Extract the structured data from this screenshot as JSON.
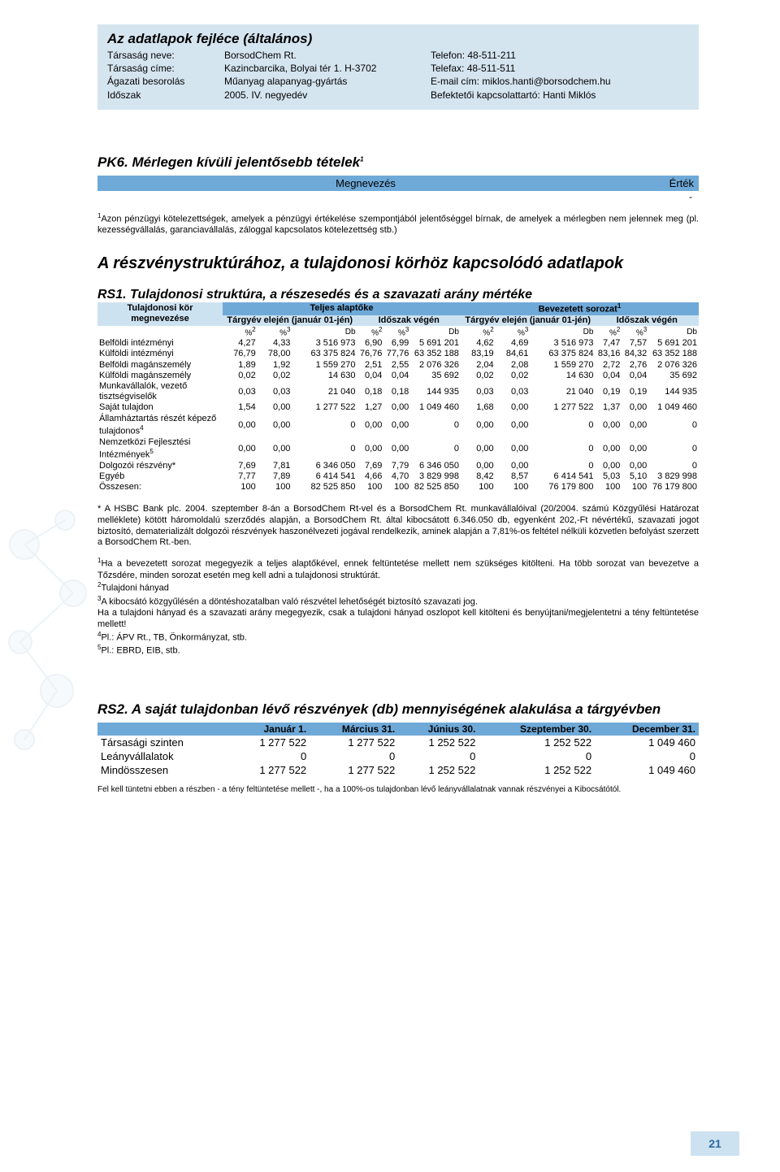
{
  "header": {
    "title": "Az adatlapok fejléce (általános)",
    "rows": [
      {
        "l": "Társaság neve:",
        "m": "BorsodChem Rt.",
        "r": "Telefon: 48-511-211"
      },
      {
        "l": "Társaság címe:",
        "m": "Kazincbarcika, Bolyai tér 1. H-3702",
        "r": "Telefax: 48-511-511"
      },
      {
        "l": "Ágazati besorolás",
        "m": "Műanyag alapanyag-gyártás",
        "r": "E-mail cím: miklos.hanti@borsodchem.hu"
      },
      {
        "l": "Időszak",
        "m": "2005. IV. negyedév",
        "r": "Befektetői kapcsolattartó: Hanti Miklós"
      }
    ]
  },
  "pk6": {
    "title": "PK6. Mérlegen kívüli jelentősebb tételek",
    "title_sup": "1",
    "col_left": "Megnevezés",
    "col_right": "Érték",
    "dash": "-",
    "footnote_sup": "1",
    "footnote": "Azon pénzügyi kötelezettségek, amelyek a pénzügyi értékelése szempontjából jelentőséggel bírnak, de amelyek a mérlegben nem jelennek meg (pl. kezességvállalás, garanciavállalás, záloggal kapcsolatos kötelezettség stb.)"
  },
  "big_section_title": "A részvénystruktúrához, a tulajdonosi körhöz kapcsolódó adatlapok",
  "rs1": {
    "title": "RS1. Tulajdonosi struktúra, a részesedés és a szavazati arány mértéke",
    "owner_col": "Tulajdonosi kör megnevezése",
    "top_a": "Teljes alaptőke",
    "top_b": "Bevezetett sorozat",
    "top_b_sup": "1",
    "sub_a": "Tárgyév elején (január 01-jén)",
    "sub_b": "Időszak végén",
    "unit_pct1": "%",
    "unit_pct1_sup": "2",
    "unit_pct2": "%",
    "unit_pct2_sup": "3",
    "unit_db": "Db",
    "rows": [
      {
        "lbl": "Belföldi intézményi",
        "v": [
          "4,27",
          "4,33",
          "3 516 973",
          "6,90",
          "6,99",
          "5 691 201",
          "4,62",
          "4,69",
          "3 516 973",
          "7,47",
          "7,57",
          "5 691 201"
        ]
      },
      {
        "lbl": "Külföldi intézményi",
        "v": [
          "76,79",
          "78,00",
          "63 375 824",
          "76,76",
          "77,76",
          "63 352 188",
          "83,19",
          "84,61",
          "63 375 824",
          "83,16",
          "84,32",
          "63 352 188"
        ]
      },
      {
        "lbl": "Belföldi magánszemély",
        "v": [
          "1,89",
          "1,92",
          "1 559 270",
          "2,51",
          "2,55",
          "2 076 326",
          "2,04",
          "2,08",
          "1 559 270",
          "2,72",
          "2,76",
          "2 076 326"
        ]
      },
      {
        "lbl": "Külföldi magánszemély",
        "v": [
          "0,02",
          "0,02",
          "14 630",
          "0,04",
          "0,04",
          "35 692",
          "0,02",
          "0,02",
          "14 630",
          "0,04",
          "0,04",
          "35 692"
        ]
      },
      {
        "lbl": "Munkavállalók, vezető tisztségviselők",
        "v": [
          "0,03",
          "0,03",
          "21 040",
          "0,18",
          "0,18",
          "144 935",
          "0,03",
          "0,03",
          "21 040",
          "0,19",
          "0,19",
          "144 935"
        ]
      },
      {
        "lbl": "Saját tulajdon",
        "v": [
          "1,54",
          "0,00",
          "1 277 522",
          "1,27",
          "0,00",
          "1 049 460",
          "1,68",
          "0,00",
          "1 277 522",
          "1,37",
          "0,00",
          "1 049 460"
        ]
      },
      {
        "lbl": "Államháztartás részét képező tulajdonos",
        "lbl_sup": "4",
        "v": [
          "0,00",
          "0,00",
          "0",
          "0,00",
          "0,00",
          "0",
          "0,00",
          "0,00",
          "0",
          "0,00",
          "0,00",
          "0"
        ]
      },
      {
        "lbl": "Nemzetközi Fejlesztési Intézmények",
        "lbl_sup": "5",
        "v": [
          "0,00",
          "0,00",
          "0",
          "0,00",
          "0,00",
          "0",
          "0,00",
          "0,00",
          "0",
          "0,00",
          "0,00",
          "0"
        ]
      },
      {
        "lbl": "Dolgozói részvény*",
        "v": [
          "7,69",
          "7,81",
          "6 346 050",
          "7,69",
          "7,79",
          "6 346 050",
          "0,00",
          "0,00",
          "0",
          "0,00",
          "0,00",
          "0"
        ]
      },
      {
        "lbl": "Egyéb",
        "v": [
          "7,77",
          "7,89",
          "6 414 541",
          "4,66",
          "4,70",
          "3 829 998",
          "8,42",
          "8,57",
          "6 414 541",
          "5,03",
          "5,10",
          "3 829 998"
        ]
      },
      {
        "lbl": "Összesen:",
        "v": [
          "100",
          "100",
          "82 525 850",
          "100",
          "100",
          "82 525 850",
          "100",
          "100",
          "76 179 800",
          "100",
          "100",
          "76 179 800"
        ]
      }
    ],
    "note_star": "* A HSBC Bank plc. 2004. szeptember 8-án a BorsodChem Rt-vel és a BorsodChem Rt. munkavállalóival (20/2004. számú Közgyűlési Határozat melléklete) kötött háromoldalú szerződés alapján, a BorsodChem Rt. által kibocsátott 6.346.050 db, egyenként 202,-Ft névértékű, szavazati jogot biztosító, dematerializált dolgozói részvények haszonélvezeti jogával rendelkezik, aminek alapján a 7,81%-os feltétel nélküli közvetlen befolyást szerzett a BorsodChem Rt.-ben.",
    "note_1": "Ha a bevezetett sorozat megegyezik a teljes alaptőkével, ennek feltüntetése mellett nem szükséges kitölteni. Ha több sorozat van bevezetve a Tőzsdére, minden sorozat esetén meg kell adni a tulajdonosi struktúrát.",
    "note_2": "Tulajdoni hányad",
    "note_3": "A kibocsátó közgyűlésén a döntéshozatalban való részvétel lehetőségét biztosító szavazati jog.",
    "note_3b": "Ha a tulajdoni hányad és a szavazati arány megegyezik, csak a tulajdoni hányad oszlopot kell kitölteni és benyújtani/megjelentetni a tény feltüntetése mellett!",
    "note_4": "Pl.: ÁPV Rt., TB, Önkormányzat, stb.",
    "note_5": "Pl.: EBRD, EIB, stb."
  },
  "rs2": {
    "title": "RS2. A saját tulajdonban lévő részvények (db) mennyiségének alakulása a tárgyévben",
    "cols": [
      "",
      "Január 1.",
      "Március 31.",
      "Június 30.",
      "Szeptember 30.",
      "December 31."
    ],
    "rows": [
      {
        "lbl": "Társasági szinten",
        "v": [
          "1 277 522",
          "1 277 522",
          "1 252 522",
          "1 252 522",
          "1 049 460"
        ]
      },
      {
        "lbl": "Leányvállalatok",
        "v": [
          "0",
          "0",
          "0",
          "0",
          "0"
        ]
      },
      {
        "lbl": "Mindösszesen",
        "v": [
          "1 277 522",
          "1 277 522",
          "1 252 522",
          "1 252 522",
          "1 049 460"
        ]
      }
    ],
    "note": "Fel kell tüntetni ebben a részben - a tény feltüntetése mellett -, ha a 100%-os tulajdonban lévő leányvállalatnak vannak részvényei a Kibocsátótól."
  },
  "page_number": "21",
  "colors": {
    "header_bg": "#d5e5f0",
    "bar_bg": "#6fa9d8",
    "sub_bg": "#cde2f1"
  }
}
